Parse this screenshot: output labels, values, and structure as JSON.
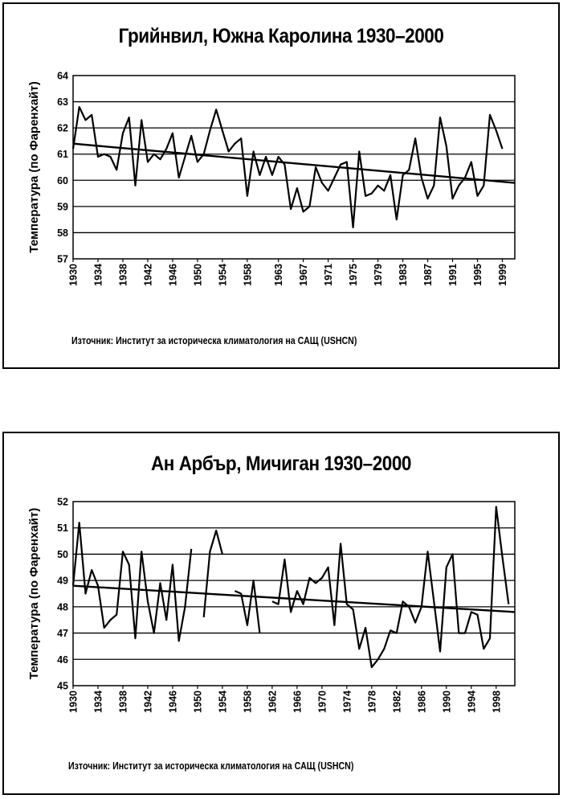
{
  "chart_data": [
    {
      "type": "line",
      "title": "Грийнвил, Южна Каролина 1930–2000",
      "ylabel": "Температура (по Фаренхайт)",
      "xlabel": "",
      "ylim": [
        57,
        64
      ],
      "yticks": [
        57,
        58,
        59,
        60,
        61,
        62,
        63,
        64
      ],
      "xlim": [
        1930,
        2001
      ],
      "xticks": [
        "1930",
        "1934",
        "1938",
        "1942",
        "1946",
        "1950",
        "1954",
        "1958",
        "1963",
        "1967",
        "1971",
        "1975",
        "1979",
        "1983",
        "1987",
        "1991",
        "1995",
        "1999"
      ],
      "grid": "horizontal",
      "legend": "none",
      "source": "Източник: Институт за историческа климатология на САЩ (USHCN)",
      "series": [
        {
          "x": [
            1930,
            1931,
            1932,
            1933,
            1934,
            1935,
            1936,
            1937,
            1938,
            1939,
            1940,
            1941,
            1942,
            1943,
            1944,
            1945,
            1946,
            1947,
            1948,
            1949,
            1950,
            1951,
            1952,
            1953,
            1954,
            1955,
            1956,
            1957,
            1958,
            1959,
            1960,
            1961,
            1962,
            1963,
            1964,
            1965,
            1966,
            1967,
            1968,
            1969,
            1970,
            1971,
            1972,
            1973,
            1974,
            1975,
            1976,
            1977,
            1978,
            1979,
            1980,
            1981,
            1982,
            1983,
            1984,
            1985,
            1986,
            1987,
            1988,
            1989,
            1990,
            1991,
            1992,
            1993,
            1994,
            1995,
            1996,
            1997,
            1998,
            1999,
            2000
          ],
          "values": [
            61.2,
            62.8,
            62.3,
            62.5,
            60.9,
            61.0,
            60.9,
            60.4,
            61.8,
            62.4,
            59.8,
            62.3,
            60.7,
            61.0,
            60.8,
            61.2,
            61.8,
            60.1,
            60.9,
            61.7,
            60.7,
            61.0,
            61.9,
            62.7,
            61.9,
            61.1,
            61.4,
            61.6,
            59.4,
            61.1,
            60.2,
            60.9,
            60.2,
            60.9,
            60.6,
            58.9,
            59.7,
            58.8,
            59.0,
            60.5,
            59.9,
            59.6,
            60.1,
            60.6,
            60.7,
            58.2,
            61.1,
            59.4,
            59.5,
            59.8,
            59.6,
            60.2,
            58.5,
            60.2,
            60.4,
            61.6,
            60.1,
            59.3,
            59.8,
            62.4,
            61.3,
            59.3,
            59.8,
            60.1,
            60.7,
            59.4,
            59.8,
            62.5,
            61.9,
            61.2,
            null
          ]
        },
        {
          "name": "trend",
          "x": [
            1930,
            2001
          ],
          "values": [
            61.4,
            59.9
          ]
        }
      ]
    },
    {
      "type": "line",
      "title": "Ан Арбър, Мичиган 1930–2000",
      "ylabel": "Температура (по Фаренхайт)",
      "xlabel": "",
      "ylim": [
        45,
        52
      ],
      "yticks": [
        45,
        46,
        47,
        48,
        49,
        50,
        51,
        52
      ],
      "xlim": [
        1930,
        2001
      ],
      "xticks": [
        "1930",
        "1934",
        "1938",
        "1942",
        "1946",
        "1950",
        "1954",
        "1958",
        "1962",
        "1966",
        "1970",
        "1974",
        "1978",
        "1982",
        "1986",
        "1990",
        "1994",
        "1998"
      ],
      "grid": "horizontal",
      "legend": "none",
      "source": "Източник: Институт за историческа климатология на САЩ (USHCN)",
      "series": [
        {
          "x": [
            1930,
            1931,
            1932,
            1933,
            1934,
            1935,
            1936,
            1937,
            1938,
            1939,
            1940,
            1941,
            1942,
            1943,
            1944,
            1945,
            1946,
            1947,
            1948,
            1949,
            1950,
            1951,
            1952,
            1953,
            1954,
            1955,
            1956,
            1957,
            1958,
            1959,
            1960,
            1961,
            1962,
            1963,
            1964,
            1965,
            1966,
            1967,
            1968,
            1969,
            1970,
            1971,
            1972,
            1973,
            1974,
            1975,
            1976,
            1977,
            1978,
            1979,
            1980,
            1981,
            1982,
            1983,
            1984,
            1985,
            1986,
            1987,
            1988,
            1989,
            1990,
            1991,
            1992,
            1993,
            1994,
            1995,
            1996,
            1997,
            1998,
            1999,
            2000
          ],
          "values": [
            48.8,
            51.2,
            48.5,
            49.4,
            48.8,
            47.2,
            47.5,
            47.7,
            50.1,
            49.6,
            46.8,
            50.1,
            48.2,
            47.0,
            48.9,
            47.5,
            49.6,
            46.7,
            48.0,
            50.2,
            null,
            47.6,
            50.1,
            50.9,
            50.0,
            null,
            48.6,
            48.5,
            47.3,
            49.0,
            47.0,
            null,
            48.2,
            48.1,
            49.8,
            47.8,
            48.6,
            48.1,
            49.1,
            48.9,
            49.1,
            49.5,
            47.3,
            50.4,
            48.1,
            47.9,
            46.4,
            47.2,
            45.7,
            46.0,
            46.4,
            47.1,
            47.0,
            48.2,
            48.0,
            47.4,
            48.0,
            50.1,
            48.2,
            46.3,
            49.5,
            50.0,
            47.0,
            47.0,
            47.8,
            47.7,
            46.4,
            46.8,
            51.8,
            49.9,
            48.1
          ]
        },
        {
          "name": "trend",
          "x": [
            1930,
            2001
          ],
          "values": [
            48.8,
            47.8
          ]
        }
      ]
    }
  ]
}
